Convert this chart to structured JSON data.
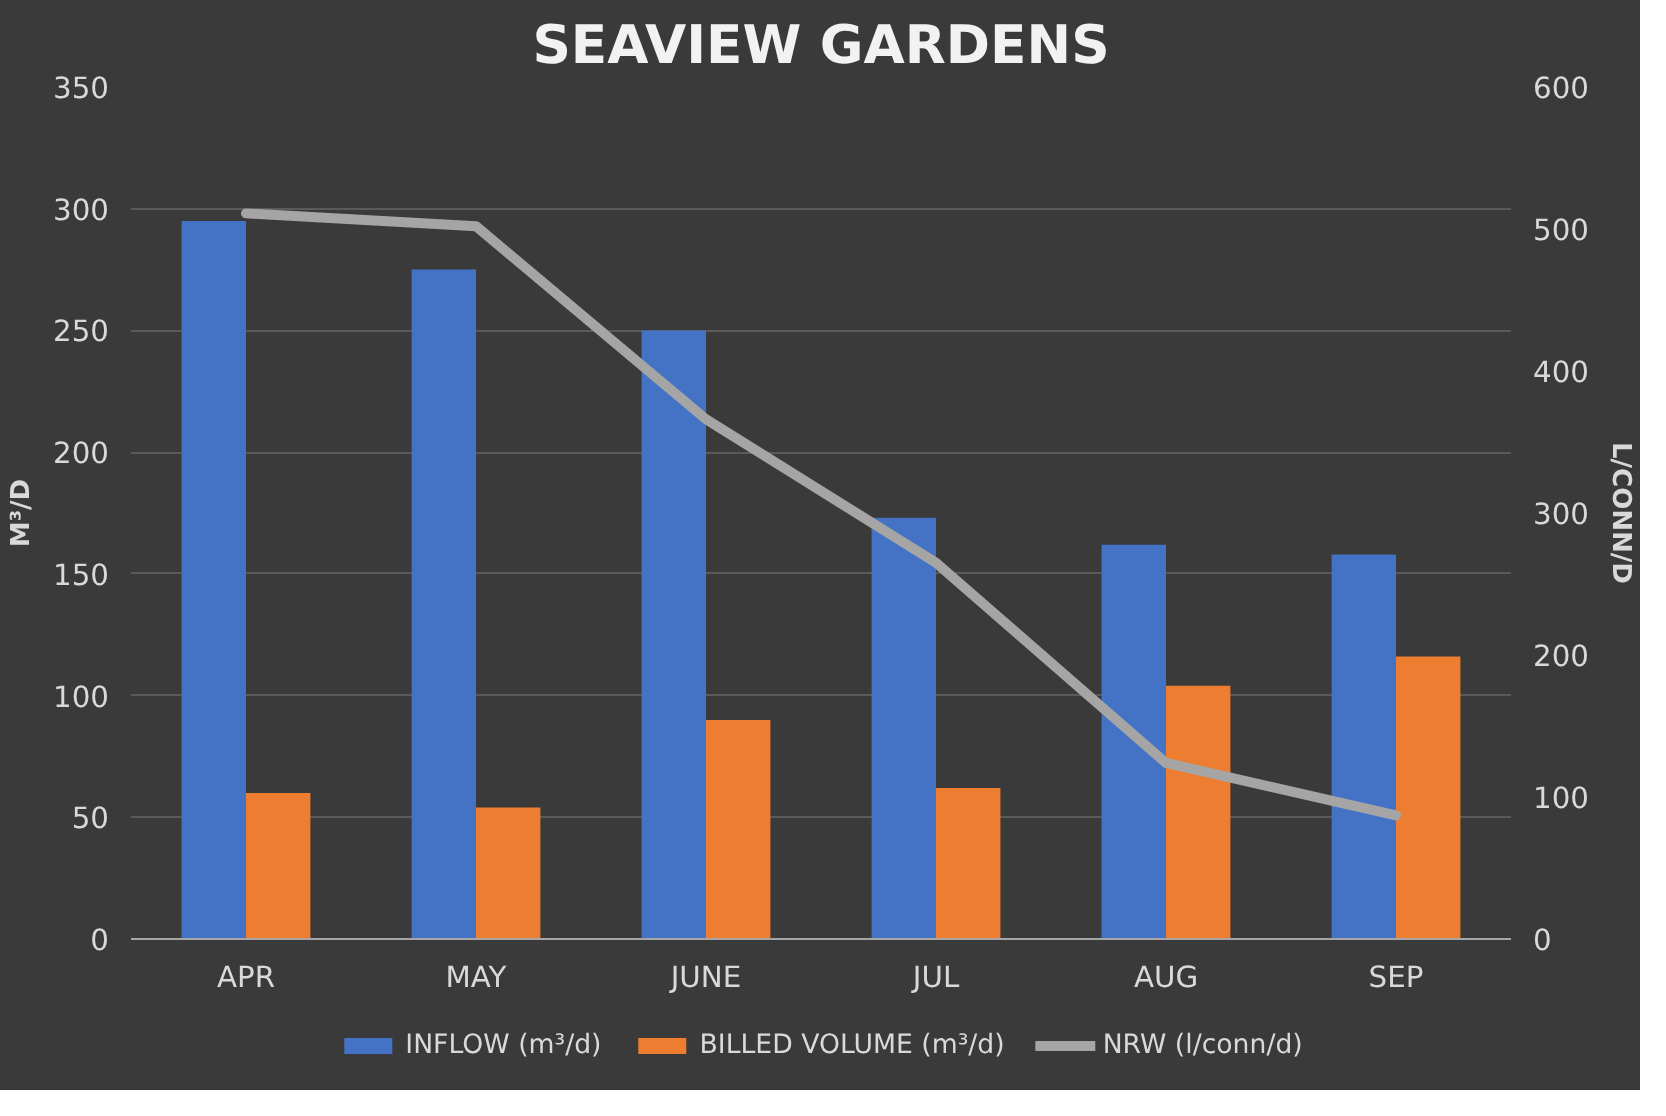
{
  "chart_data": {
    "type": "bar",
    "title": "SEAVIEW GARDENS",
    "ylabel": "M³/D",
    "y2label": "L/CONN/D",
    "categories": [
      "APR",
      "MAY",
      "JUNE",
      "JUL",
      "AUG",
      "SEP"
    ],
    "series": [
      {
        "name": "INFLOW (m³/d)",
        "color": "#4472c4",
        "values": [
          295,
          275,
          250,
          173,
          162,
          158
        ]
      },
      {
        "name": "BILLED VOLUME (m³/d)",
        "color": "#ed7d31",
        "values": [
          60,
          54,
          90,
          62,
          104,
          116
        ]
      },
      {
        "name": "NRW (l/conn/d)",
        "type": "line",
        "axis": "y2",
        "color": "#a5a5a5",
        "values": [
          511,
          502,
          366,
          265,
          124,
          87
        ]
      }
    ],
    "ylim": [
      0,
      350
    ],
    "yticks": [
      0,
      50,
      100,
      150,
      200,
      250,
      300,
      350
    ],
    "y2lim": [
      0,
      600
    ],
    "y2ticks": [
      0,
      100,
      200,
      300,
      400,
      500,
      600
    ],
    "grid": "y",
    "legend": "bottom"
  }
}
